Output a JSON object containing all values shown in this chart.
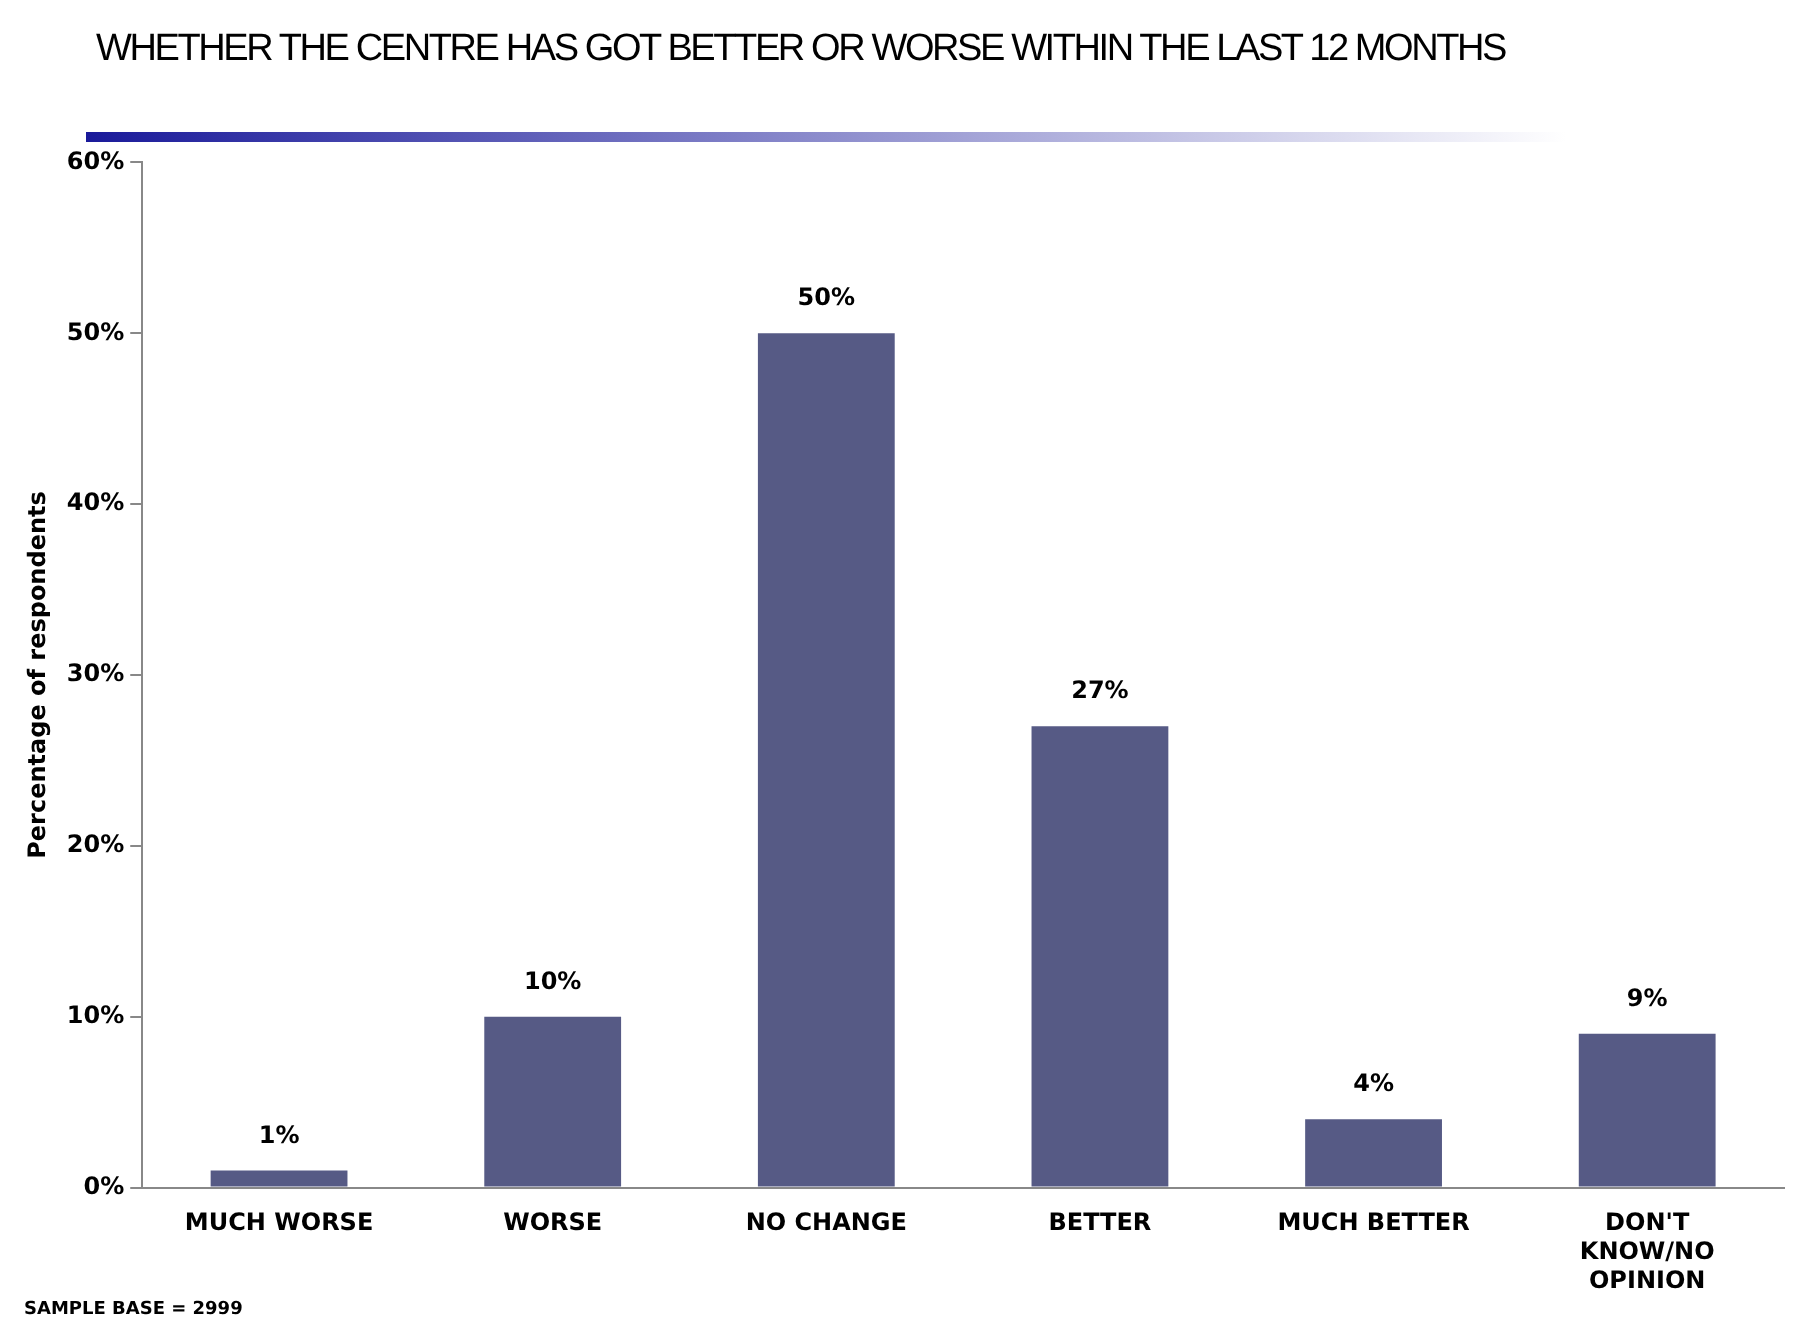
{
  "chart_data": {
    "type": "bar",
    "title": "WHETHER THE CENTRE HAS GOT BETTER OR WORSE WITHIN THE LAST 12 MONTHS",
    "ylabel": "Percentage of respondents",
    "categories": [
      "MUCH WORSE",
      "WORSE",
      "NO CHANGE",
      "BETTER",
      "MUCH BETTER",
      "DON'T KNOW/NO OPINION"
    ],
    "values": [
      1,
      10,
      50,
      27,
      4,
      9
    ],
    "color": "#565a85",
    "ylim": [
      0,
      60
    ],
    "yticks": [
      {
        "value": 0,
        "label": "0%"
      },
      {
        "value": 10,
        "label": "10%"
      },
      {
        "value": 20,
        "label": "20%"
      },
      {
        "value": 30,
        "label": "30%"
      },
      {
        "value": 40,
        "label": "40%"
      },
      {
        "value": 50,
        "label": "50%"
      },
      {
        "value": 60,
        "label": "60%"
      }
    ],
    "value_labels": [
      "1%",
      "10%",
      "50%",
      "27%",
      "4%",
      "9%"
    ],
    "grid": false,
    "legend": false,
    "annotations": [
      "SAMPLE BASE = 2999"
    ]
  }
}
